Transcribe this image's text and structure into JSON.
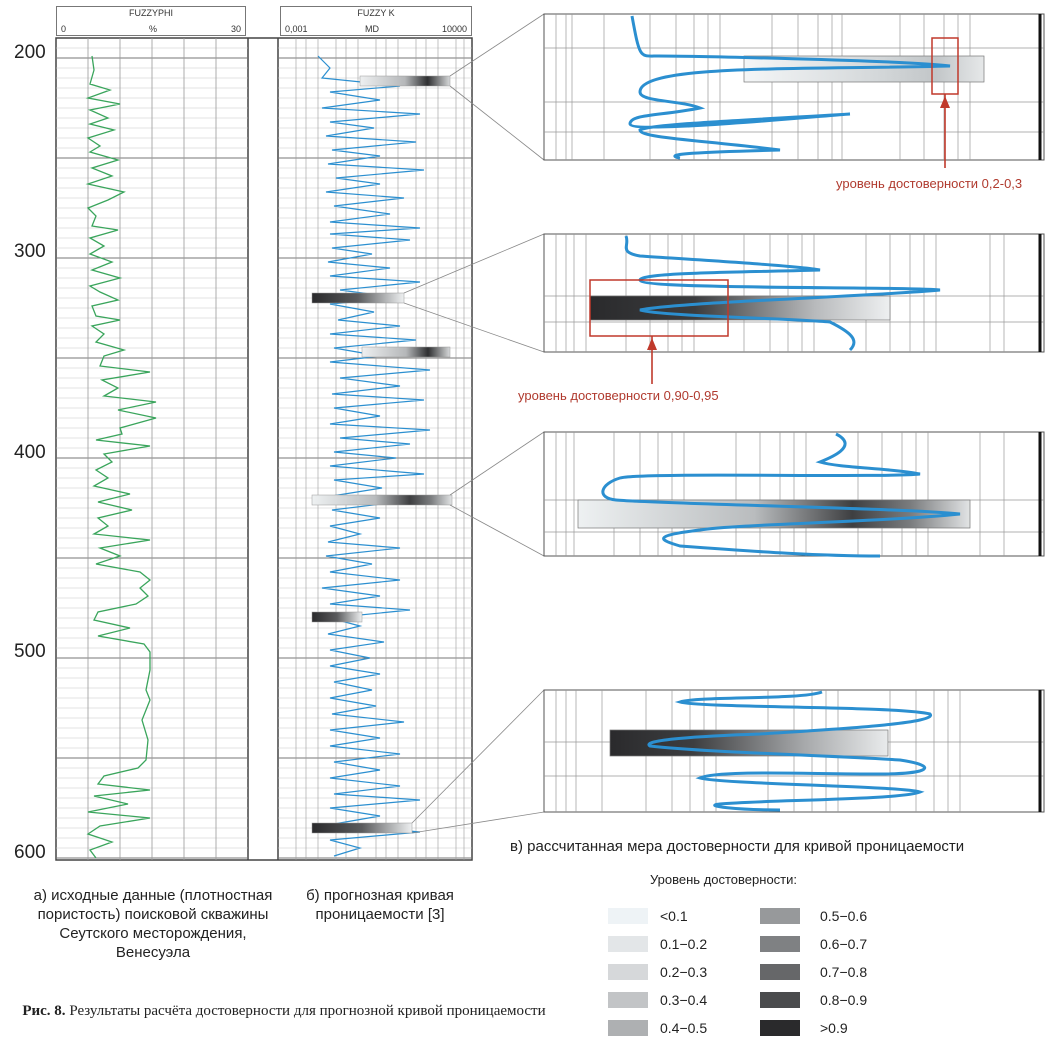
{
  "tracks": {
    "left": {
      "name": "FUZZYPHI",
      "scale_min": "0",
      "unit": "%",
      "scale_max": "30"
    },
    "right": {
      "name": "FUZZY K",
      "scale_min": "0,001",
      "unit": "MD",
      "scale_max": "10000"
    }
  },
  "depth_labels": [
    "200",
    "300",
    "400",
    "500",
    "600"
  ],
  "captions": {
    "a": "а) исходные данные (плотностная пористость) поисковой скважины Сеутского месторождения, Венесуэла",
    "b": "б) прогнозная кривая проницаемости [3]",
    "c": "в) рассчитанная мера достоверности для кривой проницаемости"
  },
  "annotations": {
    "top": "уровень достоверности 0,2-0,3",
    "second": "уровень достоверности 0,90-0,95"
  },
  "legend": {
    "title": "Уровень достоверности:",
    "items": [
      {
        "label": "<0.1",
        "color": "#eef3f6"
      },
      {
        "label": "0.1−0.2",
        "color": "#e3e6e8"
      },
      {
        "label": "0.2−0.3",
        "color": "#d6d8da"
      },
      {
        "label": "0.3−0.4",
        "color": "#c2c4c6"
      },
      {
        "label": "0.4−0.5",
        "color": "#aeb0b2"
      },
      {
        "label": "0.5−0.6",
        "color": "#97999b"
      },
      {
        "label": "0.6−0.7",
        "color": "#7f8183"
      },
      {
        "label": "0.7−0.8",
        "color": "#666769"
      },
      {
        "label": "0.8−0.9",
        "color": "#4a4b4d"
      },
      {
        "label": ">0.9",
        "color": "#2a2a2c"
      }
    ]
  },
  "figure": {
    "label": "Рис. 8.",
    "text": "Результаты расчёта достоверности для прогнозной кривой проницаемости"
  },
  "colors": {
    "phi_curve": "#3aa55c",
    "k_curve": "#2b8fd0",
    "callout": "#c0392b"
  }
}
